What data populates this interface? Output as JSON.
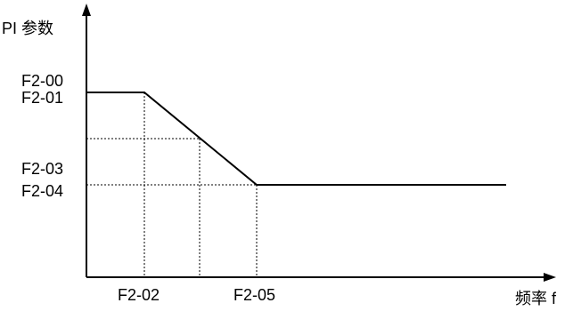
{
  "axes": {
    "y_label": "PI 参数",
    "x_label": "频率 f"
  },
  "y_ticks": {
    "upper_top": "F2-00",
    "upper_bottom": "F2-01",
    "lower_top": "F2-03",
    "lower_bottom": "F2-04"
  },
  "x_ticks": {
    "first": "F2-02",
    "second": "F2-05"
  },
  "colors": {
    "line": "#000000",
    "background": "#ffffff"
  }
}
